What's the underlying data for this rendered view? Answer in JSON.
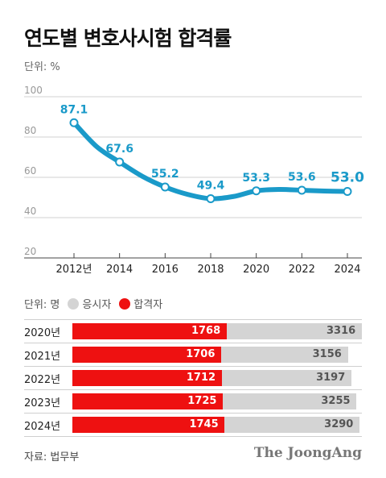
{
  "title": "연도별 변호사시험 합격률",
  "unit_top": "단위: %",
  "chart_data": [
    {
      "type": "line",
      "x": [
        "2012",
        "2013",
        "2014",
        "2015",
        "2016",
        "2017",
        "2018",
        "2019",
        "2020",
        "2021",
        "2022",
        "2023",
        "2024"
      ],
      "values": [
        87.1,
        75.2,
        67.6,
        60.5,
        55.2,
        51.5,
        49.4,
        50.5,
        53.3,
        54.0,
        53.6,
        53.2,
        53.0
      ],
      "labeled_points": [
        {
          "x": "2012",
          "value": 87.1,
          "label": "87.1"
        },
        {
          "x": "2014",
          "value": 67.6,
          "label": "67.6"
        },
        {
          "x": "2016",
          "value": 55.2,
          "label": "55.2"
        },
        {
          "x": "2018",
          "value": 49.4,
          "label": "49.4"
        },
        {
          "x": "2020",
          "value": 53.3,
          "label": "53.3"
        },
        {
          "x": "2022",
          "value": 53.6,
          "label": "53.6"
        },
        {
          "x": "2024",
          "value": 53.0,
          "label": "53.0"
        }
      ],
      "x_tick_labels": [
        "2012년",
        "2014",
        "2016",
        "2018",
        "2020",
        "2022",
        "2024"
      ],
      "y_ticks": [
        20,
        40,
        60,
        80,
        100
      ],
      "ylim": [
        20,
        100
      ],
      "grid": true,
      "color": "#1a9ac9"
    },
    {
      "type": "bar",
      "unit": "단위: 명",
      "legend": [
        {
          "name": "응시자",
          "color": "#d4d4d4"
        },
        {
          "name": "합격자",
          "color": "#ee1111"
        }
      ],
      "categories": [
        "2020년",
        "2021년",
        "2022년",
        "2023년",
        "2024년"
      ],
      "series": [
        {
          "name": "응시자",
          "values": [
            3316,
            3156,
            3197,
            3255,
            3290
          ]
        },
        {
          "name": "합격자",
          "values": [
            1768,
            1706,
            1712,
            1725,
            1745
          ]
        }
      ],
      "xmax": 3316
    }
  ],
  "labels": {
    "tests": [
      "3316",
      "3156",
      "3197",
      "3255",
      "3290"
    ],
    "passes": [
      "1768",
      "1706",
      "1712",
      "1725",
      "1745"
    ]
  },
  "source": "자료: 법무부",
  "brand": "The JoongAng"
}
